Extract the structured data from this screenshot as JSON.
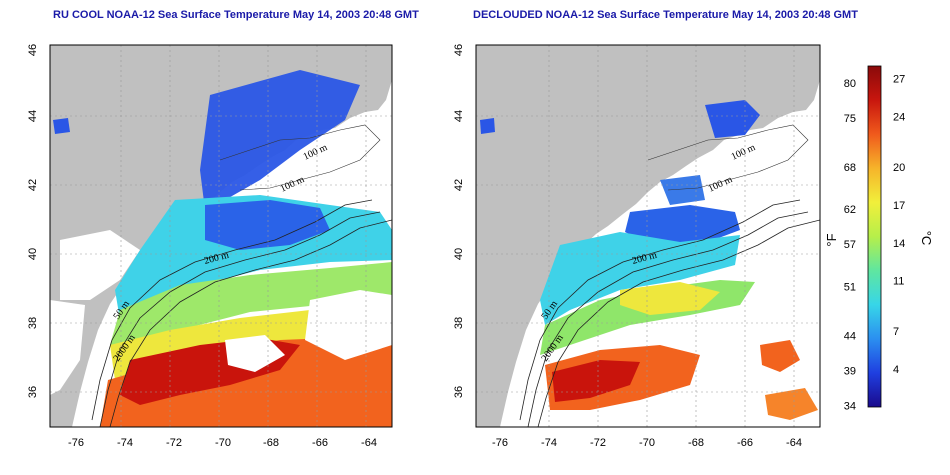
{
  "panels": [
    {
      "title": "RU COOL NOAA-12 Sea Surface Temperature May 14, 2003 20:48 GMT",
      "contour_labels": [
        "100 m",
        "100 m",
        "200 m",
        "50 m",
        "2000 m"
      ]
    },
    {
      "title": "DECLOUDED NOAA-12 Sea Surface Temperature May 14, 2003 20:48 GMT",
      "contour_labels": [
        "100 m",
        "100 m",
        "200 m",
        "50 m",
        "2000 m"
      ]
    }
  ],
  "axes": {
    "x_ticks": [
      "-76",
      "-74",
      "-72",
      "-70",
      "-68",
      "-66",
      "-64"
    ],
    "y_ticks": [
      "36",
      "38",
      "40",
      "42",
      "44",
      "46"
    ],
    "lon_range": [
      -77,
      -63
    ],
    "lat_range": [
      35,
      46
    ]
  },
  "colorbar": {
    "fahrenheit_unit": "°F",
    "celsius_unit": "°C",
    "fahrenheit_ticks": [
      "80",
      "75",
      "68",
      "62",
      "57",
      "51",
      "44",
      "39",
      "34"
    ],
    "celsius_ticks": [
      "27",
      "24",
      "20",
      "17",
      "14",
      "11",
      "7",
      "4"
    ],
    "range_c": [
      1,
      28
    ],
    "colors": [
      "#1a0a8c",
      "#1f3fe0",
      "#2b8ff0",
      "#37d6e8",
      "#5fe6a0",
      "#b6ef4a",
      "#f1ef3b",
      "#f6b42a",
      "#f05a1c",
      "#c8160e",
      "#8a0a0a"
    ]
  },
  "colors": {
    "land": "#c0c0c0",
    "title": "#1a1aa8"
  }
}
